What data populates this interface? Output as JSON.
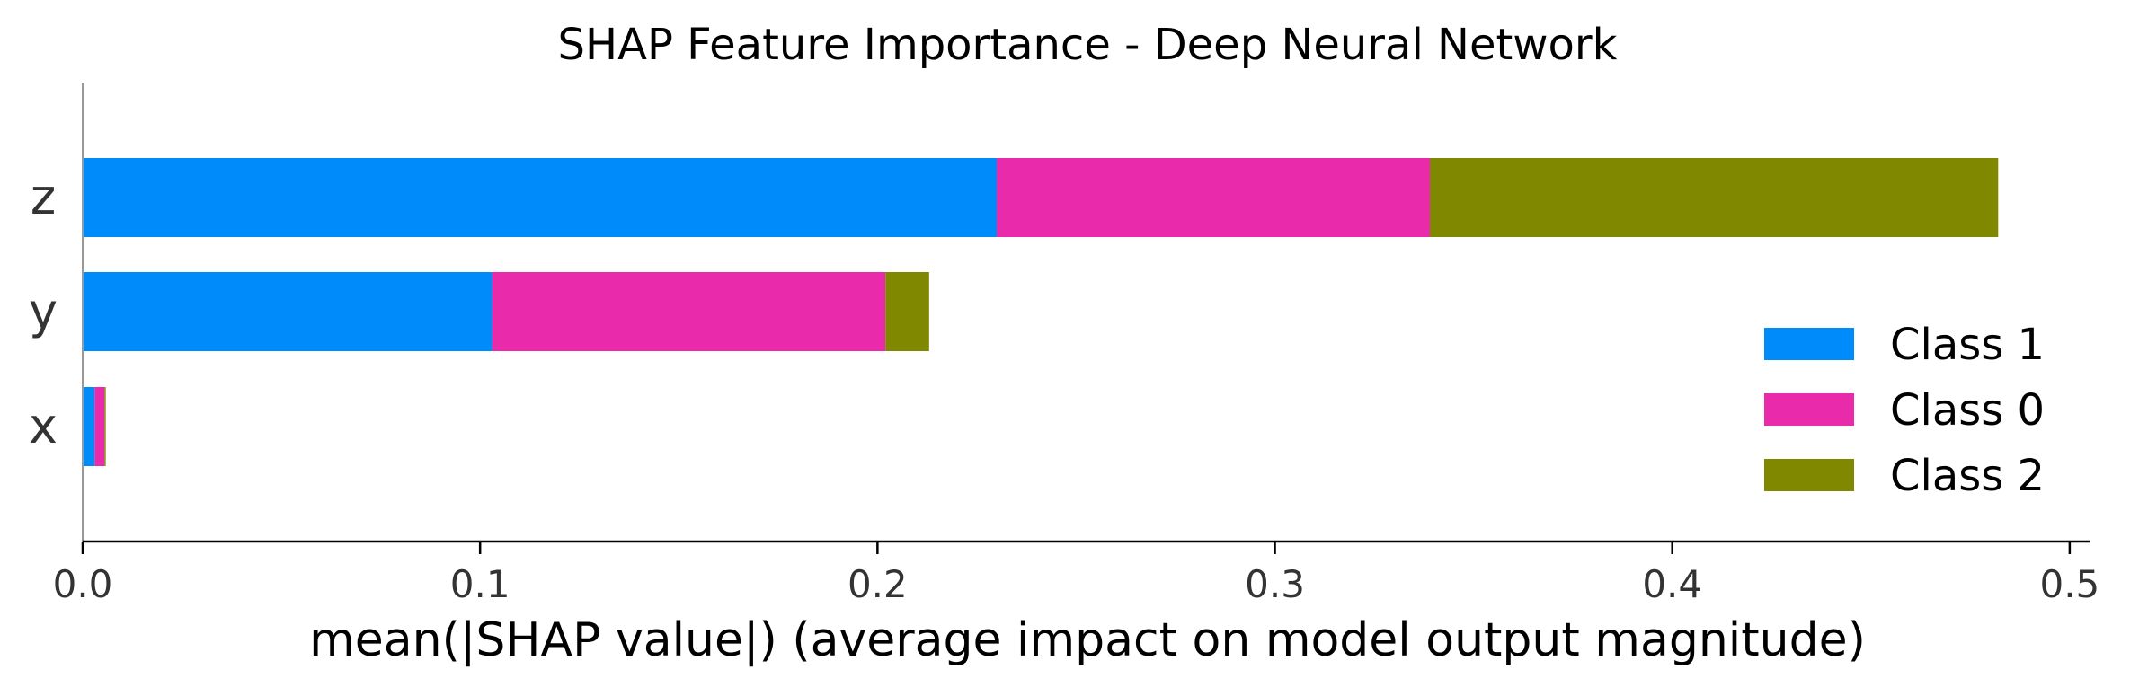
{
  "chart_data": {
    "type": "bar",
    "orientation": "horizontal",
    "stacked": true,
    "title": "SHAP Feature Importance - Deep Neural Network",
    "xlabel": "mean(|SHAP value|) (average impact on model output magnitude)",
    "ylabel": "",
    "xlim": [
      0.0,
      0.505
    ],
    "xticks": [
      "0.0",
      "0.1",
      "0.2",
      "0.3",
      "0.4",
      "0.5"
    ],
    "categories": [
      "z",
      "y",
      "x"
    ],
    "series": [
      {
        "name": "Class 1",
        "color": "#008bfb",
        "values": [
          0.23,
          0.103,
          0.003
        ]
      },
      {
        "name": "Class 0",
        "color": "#e92aab",
        "values": [
          0.109,
          0.099,
          0.0025
        ]
      },
      {
        "name": "Class 2",
        "color": "#808800",
        "values": [
          0.143,
          0.011,
          0.0003
        ]
      }
    ],
    "legend_position": "lower-right",
    "grid": false
  }
}
